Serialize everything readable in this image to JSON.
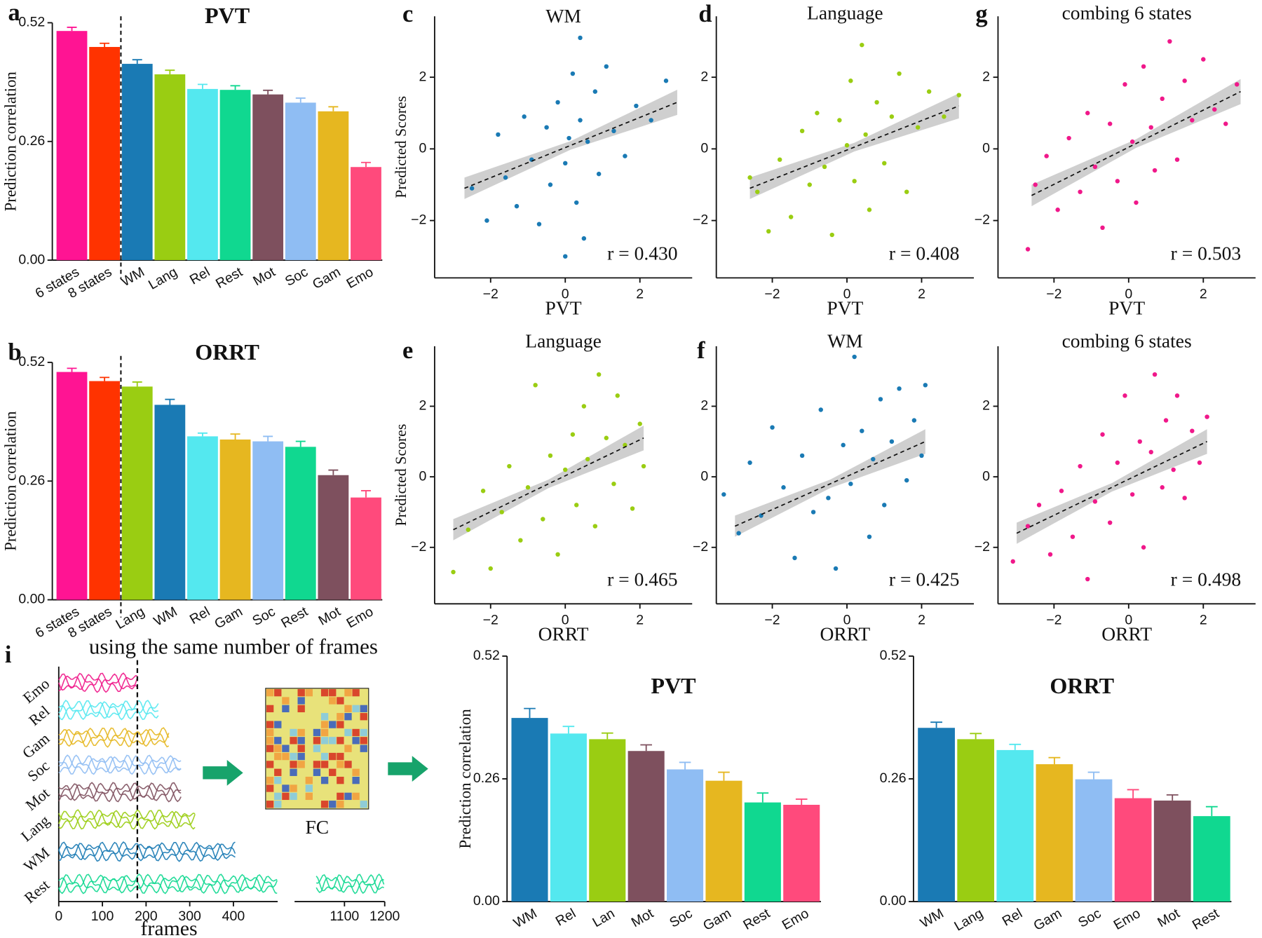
{
  "chart_data": [
    {
      "type": "bar",
      "panel": "a",
      "title": "PVT",
      "title_color": "#2233dd",
      "ylabel": "Prediction correlation",
      "categories": [
        "6 states",
        "8 states",
        "WM",
        "Lang",
        "Rel",
        "Rest",
        "Mot",
        "Soc",
        "Gam",
        "Emo"
      ],
      "values": [
        0.502,
        0.467,
        0.43,
        0.407,
        0.375,
        0.373,
        0.363,
        0.345,
        0.326,
        0.204
      ],
      "errors": [
        0.008,
        0.008,
        0.009,
        0.009,
        0.01,
        0.009,
        0.009,
        0.01,
        0.01,
        0.01
      ],
      "colors": [
        "#ff1493",
        "#ff3300",
        "#1a7ab4",
        "#9acd12",
        "#54e8ef",
        "#10d890",
        "#7e505e",
        "#8fbdf3",
        "#e6b720",
        "#ff4a7c"
      ],
      "divider_after": 1,
      "ylim": [
        0,
        0.52
      ],
      "yticks": [
        {
          "value": 0,
          "label": "0.00"
        },
        0.26,
        0.52
      ]
    },
    {
      "type": "bar",
      "panel": "b",
      "title": "ORRT",
      "title_color": "#8b1a1a",
      "ylabel": "Prediction correlation",
      "categories": [
        "6 states",
        "8 states",
        "Lang",
        "WM",
        "Rel",
        "Gam",
        "Soc",
        "Rest",
        "Mot",
        "Emo"
      ],
      "values": [
        0.499,
        0.479,
        0.467,
        0.427,
        0.358,
        0.351,
        0.347,
        0.335,
        0.273,
        0.224
      ],
      "errors": [
        0.008,
        0.008,
        0.01,
        0.012,
        0.007,
        0.012,
        0.011,
        0.012,
        0.011,
        0.015
      ],
      "colors": [
        "#ff1493",
        "#ff3300",
        "#9acd12",
        "#1a7ab4",
        "#54e8ef",
        "#e6b720",
        "#8fbdf3",
        "#10d890",
        "#7e505e",
        "#ff4a7c"
      ],
      "divider_after": 1,
      "ylim": [
        0,
        0.52
      ],
      "yticks": [
        {
          "value": 0,
          "label": "0.00"
        },
        0.26,
        0.52
      ]
    },
    {
      "type": "scatter",
      "panel": "c",
      "title": "WM",
      "color": "#1a7ab4",
      "xlabel": "PVT",
      "xlabel_color": "#2233dd",
      "ylabel": "Predicted Scores",
      "x": [
        -2.5,
        -2.1,
        -1.8,
        -1.6,
        -1.3,
        -1.1,
        -0.9,
        -0.7,
        -0.5,
        -0.4,
        -0.2,
        0,
        0.1,
        0.2,
        0.3,
        0.4,
        0.5,
        0.6,
        0.8,
        0.9,
        1.1,
        1.3,
        1.6,
        1.9,
        2.3,
        2.7,
        0.4,
        0
      ],
      "y": [
        -1.1,
        -2.0,
        0.4,
        -0.8,
        -1.6,
        0.9,
        -0.3,
        -2.1,
        0.6,
        -1.0,
        1.3,
        -0.4,
        0.3,
        2.1,
        -1.5,
        0.8,
        -2.5,
        0.2,
        1.6,
        -0.7,
        2.3,
        0.5,
        -0.2,
        1.2,
        0.8,
        1.9,
        3.1,
        -3.0
      ],
      "fit": {
        "x": [
          -2.7,
          3.0
        ],
        "y": [
          -1.1,
          1.3
        ]
      },
      "annotation": "r = 0.430",
      "xlim": [
        -3.5,
        3.4
      ],
      "ylim": [
        -3.6,
        3.7
      ],
      "xticks": [
        {
          "value": -2,
          "label": "−2"
        },
        0,
        2
      ],
      "yticks": [
        {
          "value": -2,
          "label": "−2"
        },
        0,
        2
      ]
    },
    {
      "type": "scatter",
      "panel": "d",
      "title": "Language",
      "color": "#9acd12",
      "xlabel": "PVT",
      "xlabel_color": "#2233dd",
      "x": [
        -2.6,
        -2.4,
        -2.1,
        -1.8,
        -1.5,
        -1.2,
        -1.0,
        -0.8,
        -0.6,
        -0.4,
        -0.2,
        0,
        0.1,
        0.2,
        0.4,
        0.5,
        0.6,
        0.8,
        1.0,
        1.2,
        1.4,
        1.6,
        1.9,
        2.2,
        2.6,
        3.0
      ],
      "y": [
        -0.8,
        -1.2,
        -2.3,
        -0.3,
        -1.9,
        0.5,
        -1.0,
        1.0,
        -0.5,
        -2.4,
        0.8,
        0.1,
        1.9,
        -0.9,
        2.9,
        0.4,
        -1.7,
        1.3,
        -0.4,
        0.9,
        2.1,
        -1.2,
        0.6,
        1.6,
        0.9,
        1.5
      ],
      "fit": {
        "x": [
          -2.6,
          3.0
        ],
        "y": [
          -1.1,
          1.2
        ]
      },
      "annotation": "r = 0.408",
      "xlim": [
        -3.5,
        3.4
      ],
      "ylim": [
        -3.6,
        3.7
      ],
      "xticks": [
        {
          "value": -2,
          "label": "−2"
        },
        0,
        2
      ],
      "yticks": [
        {
          "value": -2,
          "label": "−2"
        },
        0,
        2
      ]
    },
    {
      "type": "scatter",
      "panel": "g",
      "title": "combing 6 states",
      "color": "#f0188a",
      "xlabel": "PVT",
      "xlabel_color": "#2233dd",
      "x": [
        -2.7,
        -2.5,
        -2.2,
        -1.9,
        -1.6,
        -1.3,
        -1.1,
        -0.9,
        -0.7,
        -0.5,
        -0.3,
        -0.1,
        0.1,
        0.2,
        0.4,
        0.6,
        0.7,
        0.9,
        1.1,
        1.3,
        1.5,
        1.7,
        2.0,
        2.3,
        2.6,
        2.9
      ],
      "y": [
        -2.8,
        -1.0,
        -0.2,
        -1.7,
        0.3,
        -1.2,
        1.0,
        -0.5,
        -2.2,
        0.7,
        -0.9,
        1.8,
        0.2,
        -1.5,
        2.3,
        0.6,
        -0.6,
        1.4,
        3.0,
        -0.3,
        1.9,
        0.8,
        2.5,
        1.1,
        0.7,
        1.8
      ],
      "fit": {
        "x": [
          -2.6,
          3.0
        ],
        "y": [
          -1.3,
          1.6
        ]
      },
      "annotation": "r = 0.503",
      "xlim": [
        -3.5,
        3.4
      ],
      "ylim": [
        -3.6,
        3.7
      ],
      "xticks": [
        {
          "value": -2,
          "label": "−2"
        },
        0,
        2
      ],
      "yticks": [
        {
          "value": -2,
          "label": "−2"
        },
        0,
        2
      ]
    },
    {
      "type": "scatter",
      "panel": "e",
      "title": "Language",
      "color": "#9acd12",
      "xlabel": "ORRT",
      "xlabel_color": "#8b1a1a",
      "ylabel": "Predicted Scores",
      "x": [
        -3.0,
        -2.6,
        -2.2,
        -2.0,
        -1.7,
        -1.5,
        -1.2,
        -1.0,
        -0.8,
        -0.6,
        -0.4,
        -0.2,
        0,
        0.2,
        0.3,
        0.5,
        0.6,
        0.8,
        0.9,
        1.1,
        1.3,
        1.4,
        1.6,
        1.8,
        2.0,
        2.1
      ],
      "y": [
        -2.7,
        -1.5,
        -0.4,
        -2.6,
        -1.0,
        0.3,
        -1.8,
        -0.3,
        2.6,
        -1.2,
        0.6,
        -2.2,
        0.2,
        1.2,
        -0.8,
        2.0,
        0.5,
        -1.4,
        2.9,
        1.1,
        -0.2,
        2.3,
        0.9,
        -0.9,
        1.5,
        0.3
      ],
      "fit": {
        "x": [
          -3.0,
          2.1
        ],
        "y": [
          -1.5,
          1.1
        ]
      },
      "annotation": "r = 0.465",
      "xlim": [
        -3.5,
        3.4
      ],
      "ylim": [
        -3.6,
        3.7
      ],
      "xticks": [
        {
          "value": -2,
          "label": "−2"
        },
        0,
        2
      ],
      "yticks": [
        {
          "value": -2,
          "label": "−2"
        },
        0,
        2
      ]
    },
    {
      "type": "scatter",
      "panel": "f",
      "title": "WM",
      "color": "#1a7ab4",
      "xlabel": "ORRT",
      "xlabel_color": "#8b1a1a",
      "x": [
        -3.3,
        -2.9,
        -2.6,
        -2.3,
        -2.0,
        -1.7,
        -1.4,
        -1.2,
        -0.9,
        -0.7,
        -0.5,
        -0.3,
        -0.1,
        0.1,
        0.2,
        0.4,
        0.6,
        0.7,
        0.9,
        1.0,
        1.2,
        1.4,
        1.6,
        1.8,
        2.0,
        2.1
      ],
      "y": [
        -0.5,
        -1.6,
        0.4,
        -1.1,
        1.4,
        -0.3,
        -2.3,
        0.6,
        -1.0,
        1.9,
        -0.6,
        -2.6,
        0.9,
        -0.2,
        3.4,
        1.3,
        -1.7,
        0.5,
        2.2,
        -0.8,
        1.0,
        2.5,
        -0.1,
        1.6,
        0.6,
        2.6
      ],
      "fit": {
        "x": [
          -3.0,
          2.1
        ],
        "y": [
          -1.4,
          1.0
        ]
      },
      "annotation": "r = 0.425",
      "xlim": [
        -3.5,
        3.4
      ],
      "ylim": [
        -3.6,
        3.7
      ],
      "xticks": [
        {
          "value": -2,
          "label": "−2"
        },
        0,
        2
      ],
      "yticks": [
        {
          "value": -2,
          "label": "−2"
        },
        0,
        2
      ]
    },
    {
      "type": "scatter",
      "title": "combing 6 states",
      "color": "#f0188a",
      "xlabel": "ORRT",
      "xlabel_color": "#8b1a1a",
      "x": [
        -3.1,
        -2.7,
        -2.4,
        -2.1,
        -1.8,
        -1.5,
        -1.3,
        -1.1,
        -0.9,
        -0.7,
        -0.5,
        -0.3,
        -0.1,
        0.1,
        0.3,
        0.4,
        0.6,
        0.7,
        0.9,
        1.0,
        1.2,
        1.3,
        1.5,
        1.7,
        1.9,
        2.1
      ],
      "y": [
        -2.4,
        -1.4,
        -0.8,
        -2.2,
        -0.4,
        -1.7,
        0.3,
        -2.9,
        -0.7,
        1.2,
        -1.3,
        0.4,
        2.3,
        -0.5,
        1.0,
        -2.0,
        0.7,
        2.9,
        -0.3,
        1.6,
        0.2,
        2.3,
        -0.6,
        1.3,
        0.4,
        1.7
      ],
      "fit": {
        "x": [
          -3.0,
          2.1
        ],
        "y": [
          -1.6,
          1.0
        ]
      },
      "annotation": "r = 0.498",
      "xlim": [
        -3.5,
        3.4
      ],
      "ylim": [
        -3.6,
        3.7
      ],
      "xticks": [
        {
          "value": -2,
          "label": "−2"
        },
        0,
        2
      ],
      "yticks": [
        {
          "value": -2,
          "label": "−2"
        },
        0,
        2
      ]
    },
    {
      "type": "bar",
      "title": "PVT",
      "title_color": "#2233dd",
      "ylabel": "Prediction correlation",
      "categories": [
        "WM",
        "Rel",
        "Lan",
        "Mot",
        "Soc",
        "Gam",
        "Rest",
        "Emo"
      ],
      "values": [
        0.389,
        0.356,
        0.344,
        0.319,
        0.28,
        0.256,
        0.21,
        0.205
      ],
      "errors": [
        0.02,
        0.015,
        0.013,
        0.013,
        0.015,
        0.018,
        0.02,
        0.012
      ],
      "colors": [
        "#1a7ab4",
        "#54e8ef",
        "#9acd12",
        "#7e505e",
        "#8fbdf3",
        "#e6b720",
        "#10d890",
        "#ff4a7c"
      ],
      "ylim": [
        0,
        0.52
      ],
      "yticks": [
        {
          "value": 0,
          "label": "0.00"
        },
        0.26,
        0.52
      ]
    },
    {
      "type": "bar",
      "title": "ORRT",
      "title_color": "#8b1a1a",
      "categories": [
        "WM",
        "Lang",
        "Rel",
        "Gam",
        "Soc",
        "Emo",
        "Mot",
        "Rest"
      ],
      "values": [
        0.368,
        0.344,
        0.321,
        0.291,
        0.259,
        0.219,
        0.214,
        0.181
      ],
      "errors": [
        0.012,
        0.012,
        0.012,
        0.014,
        0.015,
        0.018,
        0.012,
        0.02
      ],
      "colors": [
        "#1a7ab4",
        "#9acd12",
        "#54e8ef",
        "#e6b720",
        "#8fbdf3",
        "#ff4a7c",
        "#7e505e",
        "#10d890"
      ],
      "ylim": [
        0,
        0.52
      ],
      "yticks": [
        {
          "value": 0,
          "label": "0.00"
        },
        0.26,
        0.52
      ]
    }
  ],
  "diagram": {
    "panel": "i",
    "title": "using the same number of frames",
    "states": [
      "Emo",
      "Rel",
      "Gam",
      "Soc",
      "Mot",
      "Lang",
      "WM",
      "Rest"
    ],
    "colors": [
      "#f0188a",
      "#54e8ef",
      "#e6b720",
      "#8fbdf3",
      "#7e505e",
      "#9acd12",
      "#1a7ab4",
      "#10d890"
    ],
    "frames": [
      180,
      230,
      255,
      280,
      280,
      315,
      405,
      1200
    ],
    "cut": 180,
    "xticks": [
      0,
      100,
      200,
      300,
      400,
      1100,
      1200
    ],
    "xlabel": "frames",
    "fc_label": "FC"
  }
}
